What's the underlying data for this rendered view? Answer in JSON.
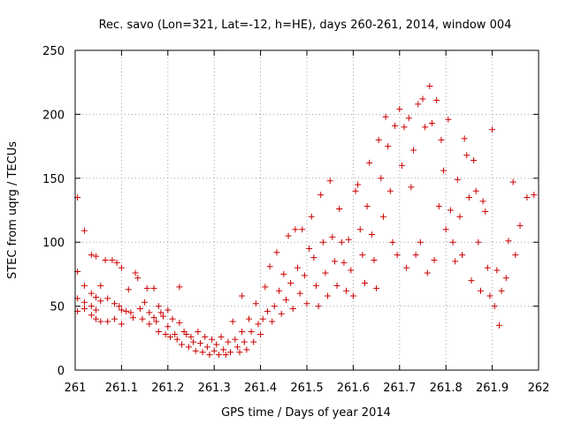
{
  "chart_data": {
    "type": "scatter",
    "title": "Rec. savo (Lon=321, Lat=-12, h=HE), days 260-261, 2014, window 004",
    "xlabel": "GPS time / Days of year 2014",
    "ylabel": "STEC from uqrg / TECUs",
    "xlim": [
      261,
      262
    ],
    "ylim": [
      0,
      250
    ],
    "xticks": [
      261,
      261.1,
      261.2,
      261.3,
      261.4,
      261.5,
      261.6,
      261.7,
      261.8,
      261.9,
      262
    ],
    "xtick_labels": [
      "261",
      "261.1",
      "261.2",
      "261.3",
      "261.4",
      "261.5",
      "261.6",
      "261.7",
      "261.8",
      "261.9",
      "262"
    ],
    "yticks": [
      0,
      50,
      100,
      150,
      200,
      250
    ],
    "ytick_labels": [
      "0",
      "50",
      "100",
      "150",
      "200",
      "250"
    ],
    "grid": true,
    "marker": "+",
    "color": "#cc0000",
    "points": [
      [
        261.005,
        135
      ],
      [
        261.005,
        77
      ],
      [
        261.005,
        56
      ],
      [
        261.005,
        46
      ],
      [
        261.02,
        109
      ],
      [
        261.02,
        66
      ],
      [
        261.02,
        53
      ],
      [
        261.02,
        48
      ],
      [
        261.035,
        90
      ],
      [
        261.035,
        60
      ],
      [
        261.035,
        50
      ],
      [
        261.035,
        43
      ],
      [
        261.045,
        89
      ],
      [
        261.045,
        57
      ],
      [
        261.045,
        47
      ],
      [
        261.045,
        40
      ],
      [
        261.055,
        66
      ],
      [
        261.055,
        54
      ],
      [
        261.055,
        38
      ],
      [
        261.065,
        86
      ],
      [
        261.07,
        56
      ],
      [
        261.07,
        38
      ],
      [
        261.08,
        86
      ],
      [
        261.085,
        52
      ],
      [
        261.085,
        40
      ],
      [
        261.09,
        84
      ],
      [
        261.095,
        50
      ],
      [
        261.1,
        80
      ],
      [
        261.1,
        47
      ],
      [
        261.1,
        36
      ],
      [
        261.11,
        46
      ],
      [
        261.115,
        63
      ],
      [
        261.12,
        45
      ],
      [
        261.125,
        41
      ],
      [
        261.13,
        76
      ],
      [
        261.135,
        72
      ],
      [
        261.14,
        48
      ],
      [
        261.145,
        40
      ],
      [
        261.15,
        53
      ],
      [
        261.155,
        64
      ],
      [
        261.16,
        45
      ],
      [
        261.16,
        36
      ],
      [
        261.17,
        64
      ],
      [
        261.17,
        41
      ],
      [
        261.175,
        38
      ],
      [
        261.18,
        50
      ],
      [
        261.18,
        30
      ],
      [
        261.185,
        45
      ],
      [
        261.19,
        42
      ],
      [
        261.195,
        28
      ],
      [
        261.2,
        47
      ],
      [
        261.2,
        34
      ],
      [
        261.205,
        26
      ],
      [
        261.21,
        40
      ],
      [
        261.215,
        28
      ],
      [
        261.22,
        24
      ],
      [
        261.225,
        65
      ],
      [
        261.225,
        37
      ],
      [
        261.23,
        20
      ],
      [
        261.235,
        30
      ],
      [
        261.24,
        28
      ],
      [
        261.245,
        18
      ],
      [
        261.25,
        26
      ],
      [
        261.255,
        22
      ],
      [
        261.26,
        15
      ],
      [
        261.265,
        30
      ],
      [
        261.27,
        21
      ],
      [
        261.275,
        14
      ],
      [
        261.28,
        26
      ],
      [
        261.285,
        18
      ],
      [
        261.29,
        12
      ],
      [
        261.295,
        24
      ],
      [
        261.3,
        15
      ],
      [
        261.305,
        20
      ],
      [
        261.31,
        12
      ],
      [
        261.315,
        26
      ],
      [
        261.32,
        16
      ],
      [
        261.325,
        12
      ],
      [
        261.33,
        22
      ],
      [
        261.335,
        14
      ],
      [
        261.34,
        38
      ],
      [
        261.345,
        24
      ],
      [
        261.35,
        18
      ],
      [
        261.355,
        14
      ],
      [
        261.36,
        58
      ],
      [
        261.36,
        30
      ],
      [
        261.365,
        22
      ],
      [
        261.37,
        16
      ],
      [
        261.375,
        40
      ],
      [
        261.38,
        30
      ],
      [
        261.385,
        22
      ],
      [
        261.39,
        52
      ],
      [
        261.395,
        36
      ],
      [
        261.4,
        28
      ],
      [
        261.405,
        40
      ],
      [
        261.41,
        65
      ],
      [
        261.415,
        46
      ],
      [
        261.42,
        81
      ],
      [
        261.425,
        38
      ],
      [
        261.43,
        50
      ],
      [
        261.435,
        92
      ],
      [
        261.44,
        62
      ],
      [
        261.445,
        44
      ],
      [
        261.45,
        75
      ],
      [
        261.455,
        55
      ],
      [
        261.46,
        105
      ],
      [
        261.465,
        68
      ],
      [
        261.47,
        48
      ],
      [
        261.475,
        110
      ],
      [
        261.48,
        80
      ],
      [
        261.485,
        60
      ],
      [
        261.49,
        110
      ],
      [
        261.495,
        74
      ],
      [
        261.5,
        52
      ],
      [
        261.505,
        95
      ],
      [
        261.51,
        120
      ],
      [
        261.515,
        88
      ],
      [
        261.52,
        66
      ],
      [
        261.525,
        50
      ],
      [
        261.53,
        137
      ],
      [
        261.535,
        100
      ],
      [
        261.54,
        76
      ],
      [
        261.545,
        58
      ],
      [
        261.55,
        148
      ],
      [
        261.555,
        104
      ],
      [
        261.56,
        85
      ],
      [
        261.565,
        66
      ],
      [
        261.57,
        126
      ],
      [
        261.575,
        100
      ],
      [
        261.58,
        84
      ],
      [
        261.585,
        62
      ],
      [
        261.59,
        102
      ],
      [
        261.595,
        78
      ],
      [
        261.6,
        58
      ],
      [
        261.605,
        140
      ],
      [
        261.61,
        145
      ],
      [
        261.615,
        110
      ],
      [
        261.62,
        90
      ],
      [
        261.625,
        68
      ],
      [
        261.63,
        128
      ],
      [
        261.635,
        162
      ],
      [
        261.64,
        106
      ],
      [
        261.645,
        86
      ],
      [
        261.65,
        64
      ],
      [
        261.655,
        180
      ],
      [
        261.66,
        150
      ],
      [
        261.665,
        120
      ],
      [
        261.67,
        198
      ],
      [
        261.675,
        175
      ],
      [
        261.68,
        140
      ],
      [
        261.685,
        100
      ],
      [
        261.69,
        191
      ],
      [
        261.695,
        90
      ],
      [
        261.7,
        204
      ],
      [
        261.705,
        160
      ],
      [
        261.71,
        190
      ],
      [
        261.715,
        80
      ],
      [
        261.72,
        197
      ],
      [
        261.725,
        143
      ],
      [
        261.73,
        172
      ],
      [
        261.735,
        90
      ],
      [
        261.74,
        208
      ],
      [
        261.745,
        100
      ],
      [
        261.75,
        212
      ],
      [
        261.755,
        190
      ],
      [
        261.76,
        76
      ],
      [
        261.765,
        222
      ],
      [
        261.77,
        193
      ],
      [
        261.775,
        86
      ],
      [
        261.78,
        211
      ],
      [
        261.785,
        128
      ],
      [
        261.79,
        180
      ],
      [
        261.795,
        156
      ],
      [
        261.8,
        110
      ],
      [
        261.805,
        196
      ],
      [
        261.81,
        125
      ],
      [
        261.815,
        100
      ],
      [
        261.82,
        85
      ],
      [
        261.825,
        149
      ],
      [
        261.83,
        120
      ],
      [
        261.835,
        90
      ],
      [
        261.84,
        181
      ],
      [
        261.845,
        168
      ],
      [
        261.85,
        135
      ],
      [
        261.855,
        70
      ],
      [
        261.86,
        164
      ],
      [
        261.865,
        140
      ],
      [
        261.87,
        100
      ],
      [
        261.875,
        62
      ],
      [
        261.88,
        132
      ],
      [
        261.885,
        124
      ],
      [
        261.89,
        80
      ],
      [
        261.895,
        58
      ],
      [
        261.9,
        188
      ],
      [
        261.905,
        50
      ],
      [
        261.91,
        78
      ],
      [
        261.915,
        35
      ],
      [
        261.92,
        62
      ],
      [
        261.93,
        72
      ],
      [
        261.935,
        101
      ],
      [
        261.945,
        147
      ],
      [
        261.95,
        90
      ],
      [
        261.96,
        113
      ],
      [
        261.975,
        135
      ],
      [
        261.99,
        137
      ]
    ]
  }
}
